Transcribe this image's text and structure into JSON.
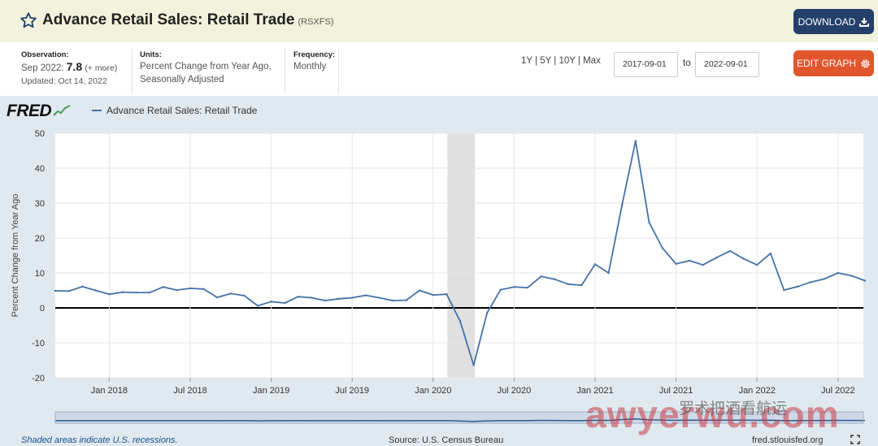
{
  "header": {
    "title": "Advance Retail Sales: Retail Trade",
    "series_code": "(RSXFS)",
    "download_label": "DOWNLOAD"
  },
  "meta": {
    "observation_label": "Observation:",
    "observation_period": "Sep 2022:",
    "observation_value": "7.8",
    "more_label": "(+ more)",
    "updated": "Updated: Oct 14, 2022",
    "units_label": "Units:",
    "units_line1": "Percent Change from Year Ago,",
    "units_line2": "Seasonally Adjusted",
    "frequency_label": "Frequency:",
    "frequency_value": "Monthly"
  },
  "controls": {
    "ranges": "1Y | 5Y | 10Y | Max",
    "start_date": "2017-09-01",
    "to_label": "to",
    "end_date": "2022-09-01",
    "edit_label": "EDIT GRAPH"
  },
  "graph": {
    "logo": "FRED",
    "legend_label": "Advance Retail Sales: Retail Trade"
  },
  "footer": {
    "recession_note": "Shaded areas indicate U.S. recessions.",
    "source": "Source: U.S. Census Bureau",
    "site": "fred.stlouisfed.org"
  },
  "watermark": {
    "text": "awyerwu.com",
    "cn_text": "罗术把酒看航运"
  },
  "colors": {
    "line": "#4572a7",
    "download": "#23406a",
    "edit": "#e1562d",
    "header_bg": "#f3f3dd",
    "graph_bg": "#e1e9f0",
    "recession": "#e0e0e0"
  },
  "chart_data": {
    "type": "line",
    "ylabel": "Percent Change from Year Ago",
    "ylim": [
      -20,
      50
    ],
    "yticks": [
      50,
      40,
      30,
      20,
      10,
      0,
      -10,
      -20
    ],
    "x_tick_labels": [
      "Jan 2018",
      "Jul 2018",
      "Jan 2019",
      "Jul 2019",
      "Jan 2020",
      "Jul 2020",
      "Jan 2021",
      "Jul 2021",
      "Jan 2022",
      "Jul 2022"
    ],
    "recession": [
      "2020-02",
      "2020-04"
    ],
    "grid": true,
    "legend_position": "top-left",
    "series": [
      {
        "name": "Advance Retail Sales: Retail Trade",
        "x": [
          "2017-09",
          "2017-10",
          "2017-11",
          "2017-12",
          "2018-01",
          "2018-02",
          "2018-03",
          "2018-04",
          "2018-05",
          "2018-06",
          "2018-07",
          "2018-08",
          "2018-09",
          "2018-10",
          "2018-11",
          "2018-12",
          "2019-01",
          "2019-02",
          "2019-03",
          "2019-04",
          "2019-05",
          "2019-06",
          "2019-07",
          "2019-08",
          "2019-09",
          "2019-10",
          "2019-11",
          "2019-12",
          "2020-01",
          "2020-02",
          "2020-03",
          "2020-04",
          "2020-05",
          "2020-06",
          "2020-07",
          "2020-08",
          "2020-09",
          "2020-10",
          "2020-11",
          "2020-12",
          "2021-01",
          "2021-02",
          "2021-03",
          "2021-04",
          "2021-05",
          "2021-06",
          "2021-07",
          "2021-08",
          "2021-09",
          "2021-10",
          "2021-11",
          "2021-12",
          "2022-01",
          "2022-02",
          "2022-03",
          "2022-04",
          "2022-05",
          "2022-06",
          "2022-07",
          "2022-08",
          "2022-09"
        ],
        "values": [
          4.9,
          4.8,
          6.1,
          5.0,
          3.9,
          4.5,
          4.4,
          4.4,
          6.0,
          5.1,
          5.6,
          5.4,
          3.0,
          4.1,
          3.5,
          0.6,
          1.8,
          1.4,
          3.2,
          2.9,
          2.1,
          2.6,
          2.9,
          3.6,
          2.9,
          2.1,
          2.2,
          5.0,
          3.7,
          3.9,
          -3.8,
          -16.4,
          -1.4,
          5.2,
          6.0,
          5.8,
          9.0,
          8.2,
          6.8,
          6.5,
          12.5,
          10.0,
          29.5,
          47.8,
          24.5,
          17.1,
          12.6,
          13.5,
          12.3,
          14.4,
          16.3,
          14.1,
          12.3,
          15.6,
          5.1,
          6.1,
          7.4,
          8.3,
          10.0,
          9.2,
          7.8
        ]
      }
    ]
  }
}
